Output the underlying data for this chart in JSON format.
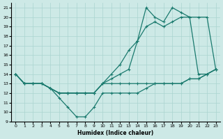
{
  "xlabel": "Humidex (Indice chaleur)",
  "xlim": [
    -0.5,
    23.5
  ],
  "ylim": [
    9,
    21.5
  ],
  "yticks": [
    9,
    10,
    11,
    12,
    13,
    14,
    15,
    16,
    17,
    18,
    19,
    20,
    21
  ],
  "xticks": [
    0,
    1,
    2,
    3,
    4,
    5,
    6,
    7,
    8,
    9,
    10,
    11,
    12,
    13,
    14,
    15,
    16,
    17,
    18,
    19,
    20,
    21,
    22,
    23
  ],
  "bg_color": "#cde9e6",
  "grid_color": "#aad4d0",
  "line_color": "#1a7a6e",
  "line_width": 0.9,
  "marker": "+",
  "marker_size": 3.5,
  "lines": [
    {
      "x": [
        0,
        1,
        2,
        3,
        4,
        5,
        6,
        7,
        8,
        9,
        10,
        11,
        12,
        13,
        14,
        15,
        16,
        17,
        18,
        19,
        20,
        21,
        22,
        23
      ],
      "y": [
        14,
        13,
        13,
        13,
        12.5,
        11.5,
        10.5,
        9.5,
        9.5,
        10.5,
        12,
        12,
        12,
        12,
        12,
        12.5,
        13,
        13,
        13,
        13,
        13.5,
        13.5,
        14,
        14.5
      ]
    },
    {
      "x": [
        0,
        1,
        2,
        3,
        4,
        5,
        6,
        7,
        8,
        9,
        10,
        11,
        12,
        13,
        14,
        15,
        16,
        17,
        18,
        19,
        20,
        21,
        22,
        23
      ],
      "y": [
        14,
        13,
        13,
        13,
        12.5,
        12,
        12,
        12,
        12,
        12,
        13,
        13,
        13,
        13,
        13,
        13,
        13,
        13,
        13,
        13,
        13.5,
        13.5,
        14,
        14.5
      ]
    },
    {
      "x": [
        0,
        1,
        2,
        3,
        4,
        5,
        6,
        7,
        8,
        9,
        10,
        11,
        12,
        13,
        14,
        15,
        16,
        17,
        18,
        19,
        20,
        21,
        22,
        23
      ],
      "y": [
        14,
        13,
        13,
        13,
        12.5,
        12,
        12,
        12,
        12,
        12,
        13,
        14,
        15,
        16.5,
        17.5,
        19,
        19.5,
        19,
        19.5,
        20,
        20,
        20,
        20,
        14.5
      ]
    },
    {
      "x": [
        0,
        1,
        2,
        3,
        4,
        5,
        6,
        7,
        8,
        9,
        10,
        11,
        12,
        13,
        14,
        15,
        16,
        17,
        18,
        19,
        20,
        21,
        22,
        23
      ],
      "y": [
        14,
        13,
        13,
        13,
        12.5,
        12,
        12,
        12,
        12,
        12,
        13,
        13.5,
        14,
        14.5,
        17.5,
        21,
        20,
        19.5,
        21,
        20.5,
        20,
        14,
        14,
        14.5
      ]
    }
  ]
}
